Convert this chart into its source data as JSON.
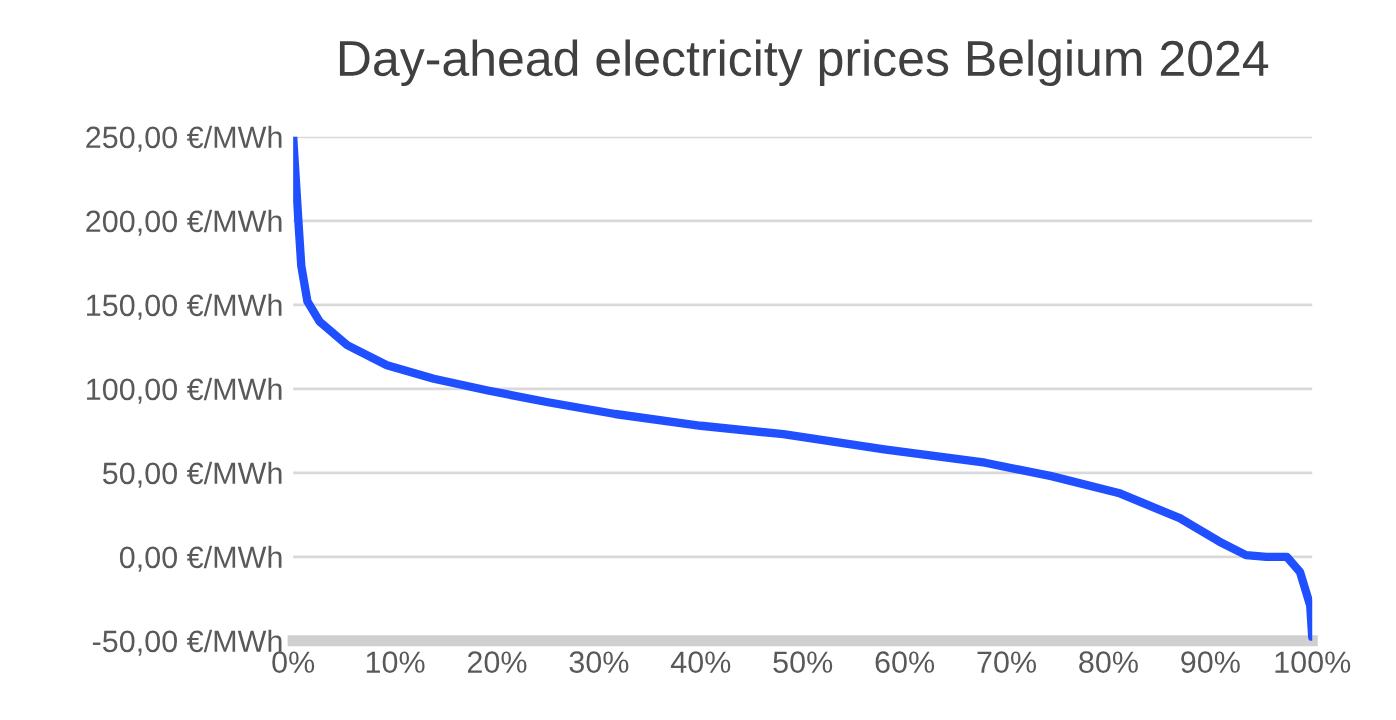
{
  "chart_data": {
    "type": "line",
    "title": "Day-ahead electricity prices Belgium 2024",
    "x": [
      0,
      0.5,
      0.8,
      1.4,
      2.6,
      5.3,
      9.2,
      13.8,
      19.1,
      25,
      31.6,
      40,
      48.1,
      58,
      67.9,
      74.4,
      81,
      87,
      90.9,
      93.5,
      95.5,
      97.5,
      98.8,
      99.8,
      100
    ],
    "series": [
      {
        "color": "#1f4fff",
        "values": [
          250,
          201,
          173,
          152,
          140,
          126,
          114,
          106,
          99,
          92,
          85,
          78,
          73,
          64,
          56,
          48,
          38,
          23,
          9,
          1,
          0,
          0,
          -9,
          -29,
          -48
        ]
      }
    ],
    "xlim": [
      0,
      100
    ],
    "ylim": [
      -50,
      250
    ],
    "xticks": [
      {
        "value": 0,
        "label": "0%"
      },
      {
        "value": 10,
        "label": "10%"
      },
      {
        "value": 20,
        "label": "20%"
      },
      {
        "value": 30,
        "label": "30%"
      },
      {
        "value": 40,
        "label": "40%"
      },
      {
        "value": 50,
        "label": "50%"
      },
      {
        "value": 60,
        "label": "60%"
      },
      {
        "value": 70,
        "label": "70%"
      },
      {
        "value": 80,
        "label": "80%"
      },
      {
        "value": 90,
        "label": "90%"
      },
      {
        "value": 100,
        "label": "100%"
      }
    ],
    "yticks": [
      {
        "value": -50,
        "label": "-50,00 €/MWh"
      },
      {
        "value": 0,
        "label": "0,00 €/MWh"
      },
      {
        "value": 50,
        "label": "50,00 €/MWh"
      },
      {
        "value": 100,
        "label": "100,00 €/MWh"
      },
      {
        "value": 150,
        "label": "150,00 €/MWh"
      },
      {
        "value": 200,
        "label": "200,00 €/MWh"
      },
      {
        "value": 250,
        "label": "250,00 €/MWh"
      }
    ],
    "grid": "y",
    "marker": "none",
    "line_style": "solid"
  }
}
